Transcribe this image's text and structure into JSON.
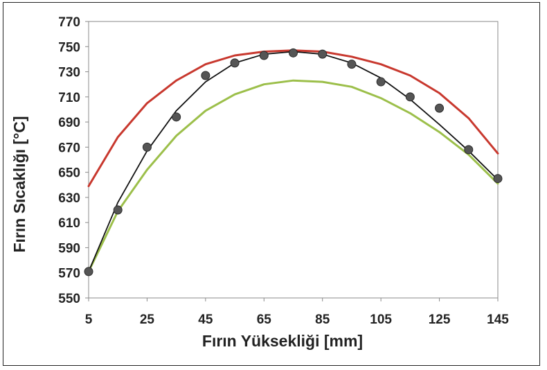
{
  "chart_data": {
    "type": "line",
    "title": "",
    "xlabel": "Fırın Yüksekliği [mm]",
    "ylabel": "Fırın Sıcaklığı [°C]",
    "xlim": [
      5,
      145
    ],
    "ylim": [
      550,
      770
    ],
    "xticks": [
      5,
      25,
      45,
      65,
      85,
      105,
      125,
      145
    ],
    "yticks": [
      550,
      570,
      590,
      610,
      630,
      650,
      670,
      690,
      710,
      730,
      750,
      770
    ],
    "grid": false,
    "legend": "none",
    "series": [
      {
        "style": "line",
        "color": "#c8382e",
        "x": [
          5,
          15,
          25,
          35,
          45,
          55,
          65,
          75,
          85,
          95,
          105,
          115,
          125,
          135,
          145
        ],
        "y": [
          639,
          678,
          705,
          723,
          736,
          743,
          746,
          747,
          746,
          742,
          736,
          727,
          713,
          693,
          665
        ]
      },
      {
        "style": "line",
        "color": "#9cbf4a",
        "x": [
          5,
          15,
          25,
          35,
          45,
          55,
          65,
          75,
          85,
          95,
          105,
          115,
          125,
          135,
          145
        ],
        "y": [
          571,
          619,
          652,
          679,
          699,
          712,
          720,
          723,
          722,
          718,
          709,
          697,
          682,
          664,
          641
        ]
      },
      {
        "style": "line",
        "color": "#111111",
        "x": [
          5,
          15,
          25,
          35,
          45,
          55,
          65,
          75,
          85,
          95,
          105,
          115,
          125,
          135,
          145
        ],
        "y": [
          571,
          626,
          667,
          699,
          722,
          737,
          744,
          746,
          744,
          737,
          725,
          708,
          688,
          667,
          644
        ]
      },
      {
        "style": "scatter",
        "color": "#555555",
        "x": [
          5,
          15,
          25,
          35,
          45,
          55,
          65,
          75,
          85,
          95,
          105,
          115,
          125,
          135,
          145
        ],
        "y": [
          571,
          620,
          670,
          694,
          727,
          737,
          743,
          745,
          744,
          736,
          722,
          710,
          701,
          668,
          645
        ]
      }
    ]
  }
}
